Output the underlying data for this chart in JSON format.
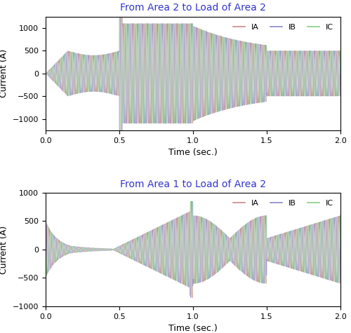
{
  "title1": "From Area 2 to Load of Area 2",
  "title2": "From Area 1 to Load of Area 2",
  "title_color": "#3333cc",
  "xlabel": "Time (sec.)",
  "ylabel": "Current (A)",
  "xlim": [
    0,
    2
  ],
  "ylim1": [
    -1250,
    1250
  ],
  "ylim2": [
    -1000,
    1000
  ],
  "yticks1": [
    -1000,
    -500,
    0,
    500,
    1000
  ],
  "yticks2": [
    -1000,
    -500,
    0,
    500,
    1000
  ],
  "xticks": [
    0,
    0.5,
    1.0,
    1.5,
    2.0
  ],
  "freq": 60,
  "dt": 0.0005,
  "line_colors": [
    "#cc8888",
    "#8888cc",
    "#88cc88"
  ],
  "legend_labels": [
    "IA",
    "IB",
    "IC"
  ],
  "background_color": "#ffffff",
  "fig_width": 5.0,
  "fig_height": 4.75,
  "dpi": 100,
  "line_width": 0.4,
  "line_alpha": 0.85
}
